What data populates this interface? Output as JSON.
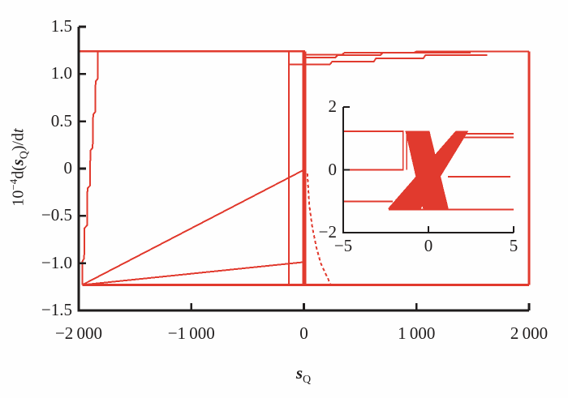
{
  "figure": {
    "background": "#fefefe",
    "accent_red": "#e13a2e",
    "axis_black": "#1f1c1c",
    "xlabel": {
      "var": "s",
      "sub": "Q"
    },
    "ylabel": {
      "base": "10",
      "exponent": "−4",
      "mid": "d(",
      "var1": "s",
      "sub": "Q",
      "tail": ")/d",
      "var2": "t"
    }
  },
  "chart_data": {
    "type": "line",
    "title": "",
    "description": "Phase portrait of s_Q versus 10^-4 d(s_Q)/dt with inset chaotic attractor detail",
    "legend": "none",
    "grid": "off",
    "main": {
      "xlim": [
        -2000,
        2000
      ],
      "ylim": [
        -1.5,
        1.5
      ],
      "x_ticks": {
        "values": [
          -2000,
          -1000,
          0,
          1000,
          2000
        ],
        "labels": [
          "−2 000",
          "−1 000",
          "0",
          "1 000",
          "2 000"
        ]
      },
      "y_ticks": {
        "values": [
          1.5,
          1.0,
          0.5,
          0,
          -0.5,
          -1.0,
          -1.5
        ],
        "labels": [
          "1.5",
          "1.0",
          "0.5",
          "0",
          "−0.5",
          "−1.0",
          "−1.5"
        ]
      },
      "series": [
        {
          "name": "top-boundary",
          "width": 2.6,
          "points": [
            [
              -2000,
              1.24
            ],
            [
              10,
              1.24
            ]
          ]
        },
        {
          "name": "left-wall",
          "width": 2,
          "points": [
            [
              -1830,
              1.24
            ],
            [
              -1832,
              0.95
            ],
            [
              -1850,
              0.92
            ],
            [
              -1853,
              0.6
            ],
            [
              -1872,
              0.57
            ],
            [
              -1876,
              0.22
            ],
            [
              -1896,
              0.19
            ],
            [
              -1900,
              -0.18
            ],
            [
              -1922,
              -0.21
            ],
            [
              -1926,
              -0.6
            ],
            [
              -1948,
              -0.63
            ],
            [
              -1952,
              -0.95
            ],
            [
              -1966,
              -0.98
            ],
            [
              -1969,
              -1.23
            ]
          ]
        },
        {
          "name": "diagonal-to-origin",
          "width": 2,
          "points": [
            [
              -1969,
              -1.23
            ],
            [
              -10,
              -0.02
            ]
          ]
        },
        {
          "name": "lower-diagonal",
          "width": 2,
          "points": [
            [
              -1969,
              -1.23
            ],
            [
              -10,
              -0.99
            ]
          ]
        },
        {
          "name": "bottom-boundary",
          "width": 2.6,
          "points": [
            [
              -1969,
              -1.23
            ],
            [
              2000,
              -1.23
            ]
          ]
        },
        {
          "name": "inner-vertical",
          "width": 2,
          "points": [
            [
              -135,
              1.24
            ],
            [
              -135,
              -1.23
            ]
          ]
        },
        {
          "name": "center-vertical-thick",
          "width": 5,
          "points": [
            [
              5,
              1.24
            ],
            [
              5,
              -1.23
            ]
          ]
        },
        {
          "name": "decay-curve",
          "width": 2,
          "dash": "4 3",
          "points": [
            [
              30,
              -0.05
            ],
            [
              50,
              -0.4
            ],
            [
              75,
              -0.62
            ],
            [
              110,
              -0.83
            ],
            [
              150,
              -1.0
            ],
            [
              200,
              -1.13
            ],
            [
              240,
              -1.23
            ]
          ]
        },
        {
          "name": "upper-right-1",
          "width": 2,
          "points": [
            [
              10,
              1.205
            ],
            [
              340,
              1.205
            ],
            [
              360,
              1.225
            ],
            [
              980,
              1.225
            ],
            [
              1000,
              1.24
            ],
            [
              2000,
              1.24
            ]
          ]
        },
        {
          "name": "upper-right-2",
          "width": 2,
          "points": [
            [
              10,
              1.175
            ],
            [
              280,
              1.175
            ],
            [
              300,
              1.2
            ],
            [
              680,
              1.2
            ],
            [
              700,
              1.225
            ],
            [
              1480,
              1.225
            ]
          ]
        },
        {
          "name": "upper-right-3",
          "width": 2,
          "points": [
            [
              -135,
              1.1
            ],
            [
              230,
              1.1
            ],
            [
              250,
              1.13
            ],
            [
              620,
              1.13
            ],
            [
              640,
              1.165
            ],
            [
              1060,
              1.165
            ],
            [
              1080,
              1.2
            ],
            [
              1630,
              1.2
            ]
          ]
        },
        {
          "name": "right-boundary",
          "width": 2.6,
          "points": [
            [
              2000,
              1.24
            ],
            [
              2000,
              -1.23
            ]
          ]
        }
      ]
    },
    "inset": {
      "xlim": [
        -5,
        5
      ],
      "ylim": [
        -2,
        2
      ],
      "x_ticks": {
        "values": [
          -5,
          0,
          5
        ],
        "labels": [
          "−5",
          "0",
          "5"
        ]
      },
      "y_ticks": {
        "values": [
          2,
          0,
          -2
        ],
        "labels": [
          "2",
          "0",
          "−2"
        ]
      },
      "series": [
        {
          "name": "left-line-upper",
          "width": 2,
          "points": [
            [
              -5,
              1.22
            ],
            [
              -1.45,
              1.22
            ]
          ]
        },
        {
          "name": "left-line-zero",
          "width": 2,
          "points": [
            [
              -5,
              0
            ],
            [
              -1.45,
              0
            ]
          ]
        },
        {
          "name": "left-line-lower",
          "width": 2,
          "points": [
            [
              -5,
              -1.0
            ],
            [
              -2.1,
              -1.0
            ]
          ]
        },
        {
          "name": "right-line-1",
          "width": 1.8,
          "points": [
            [
              1.6,
              1.15
            ],
            [
              5,
              1.15
            ]
          ]
        },
        {
          "name": "right-line-2",
          "width": 1.8,
          "points": [
            [
              1.9,
              1.03
            ],
            [
              5,
              1.03
            ]
          ]
        },
        {
          "name": "right-line-3",
          "width": 1.8,
          "points": [
            [
              1.15,
              -0.22
            ],
            [
              4.8,
              -0.22
            ]
          ]
        },
        {
          "name": "bottom-line",
          "width": 2,
          "points": [
            [
              -2.33,
              -1.27
            ],
            [
              5,
              -1.27
            ]
          ]
        },
        {
          "name": "vertical-1",
          "width": 1.6,
          "points": [
            [
              -1.48,
              0
            ],
            [
              -1.48,
              1.22
            ]
          ]
        },
        {
          "name": "vertical-2",
          "width": 1.6,
          "points": [
            [
              -1.28,
              0
            ],
            [
              -1.28,
              1.22
            ]
          ]
        }
      ],
      "polygons": [
        {
          "name": "attractor-band-rising",
          "points": [
            [
              -2.33,
              -1.22
            ],
            [
              -0.45,
              -1.22
            ],
            [
              2.3,
              1.22
            ],
            [
              1.6,
              1.22
            ]
          ]
        },
        {
          "name": "attractor-band-falling",
          "points": [
            [
              -1.33,
              1.22
            ],
            [
              0.05,
              1.22
            ],
            [
              1.15,
              -1.22
            ],
            [
              -0.3,
              -1.22
            ]
          ]
        }
      ]
    }
  }
}
